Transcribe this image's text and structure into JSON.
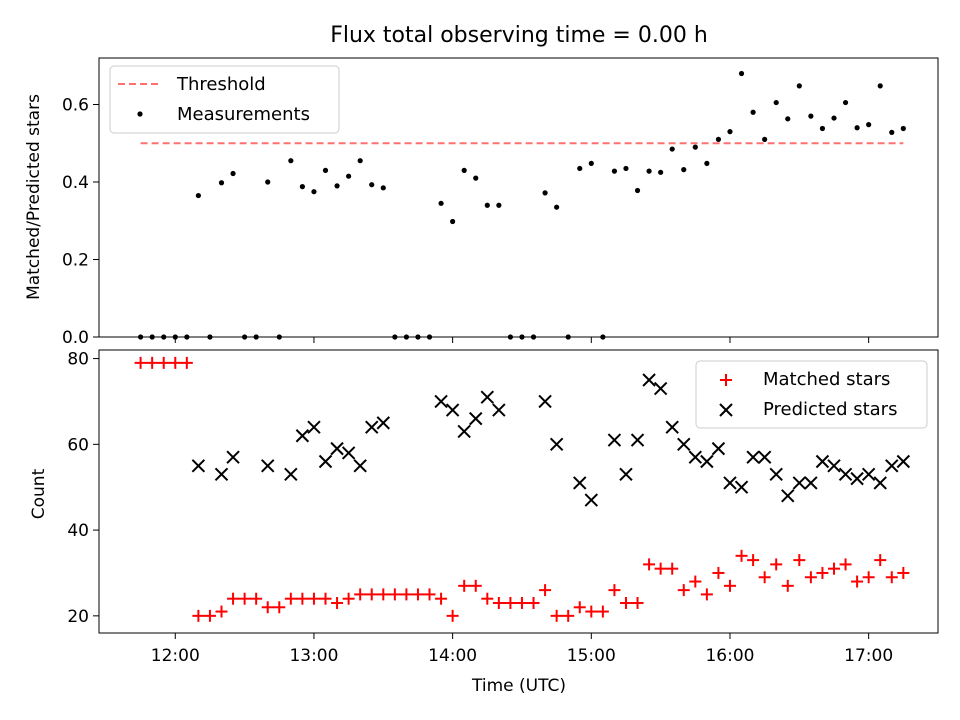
{
  "chart_data": [
    {
      "type": "scatter",
      "title": "Flux total observing time = 0.00 h",
      "xlabel": "",
      "ylabel": "Matched/Predicted stars",
      "xlim": [
        "11:27",
        "17:30"
      ],
      "ylim": [
        0,
        0.72
      ],
      "yticks": [
        0.0,
        0.2,
        0.4,
        0.6
      ],
      "ytick_labels": [
        "0.0",
        "0.2",
        "0.4",
        "0.6"
      ],
      "grid": false,
      "legend_position": "top-left",
      "series": [
        {
          "name": "Threshold",
          "type": "line",
          "style": "dashed",
          "color": "#ff7070",
          "x": [
            "11:45",
            "17:15"
          ],
          "y": [
            0.5,
            0.5
          ]
        },
        {
          "name": "Measurements",
          "type": "scatter",
          "color": "#000000",
          "x": [
            "11:45",
            "11:50",
            "11:55",
            "12:00",
            "12:05",
            "12:10",
            "12:15",
            "12:20",
            "12:25",
            "12:30",
            "12:35",
            "12:40",
            "12:45",
            "12:50",
            "12:55",
            "13:00",
            "13:05",
            "13:10",
            "13:15",
            "13:20",
            "13:25",
            "13:30",
            "13:35",
            "13:40",
            "13:45",
            "13:50",
            "13:55",
            "14:00",
            "14:05",
            "14:10",
            "14:15",
            "14:20",
            "14:25",
            "14:30",
            "14:35",
            "14:40",
            "14:45",
            "14:50",
            "14:55",
            "15:00",
            "15:05",
            "15:10",
            "15:15",
            "15:20",
            "15:25",
            "15:30",
            "15:35",
            "15:40",
            "15:45",
            "15:50",
            "15:55",
            "16:00",
            "16:05",
            "16:10",
            "16:15",
            "16:20",
            "16:25",
            "16:30",
            "16:35",
            "16:40",
            "16:45",
            "16:50",
            "16:55",
            "17:00",
            "17:05",
            "17:10",
            "17:15"
          ],
          "y": [
            0.0,
            0.0,
            0.0,
            0.0,
            0.0,
            0.365,
            0.0,
            0.398,
            0.422,
            0.0,
            0.0,
            0.4,
            0.0,
            0.455,
            0.388,
            0.375,
            0.43,
            0.39,
            0.415,
            0.455,
            0.393,
            0.385,
            0.0,
            0.0,
            0.0,
            0.0,
            0.345,
            0.298,
            0.43,
            0.41,
            0.34,
            0.34,
            0.0,
            0.0,
            0.0,
            0.372,
            0.335,
            0.0,
            0.435,
            0.448,
            0.0,
            0.428,
            0.435,
            0.378,
            0.428,
            0.425,
            0.485,
            0.432,
            0.49,
            0.448,
            0.51,
            0.53,
            0.68,
            0.58,
            0.51,
            0.605,
            0.563,
            0.648,
            0.57,
            0.538,
            0.565,
            0.605,
            0.54,
            0.548,
            0.648,
            0.528,
            0.538
          ]
        }
      ]
    },
    {
      "type": "scatter",
      "title": "",
      "xlabel": "Time (UTC)",
      "ylabel": "Count",
      "xlim": [
        "11:27",
        "17:30"
      ],
      "ylim": [
        16,
        82
      ],
      "yticks": [
        20,
        40,
        60,
        80
      ],
      "ytick_labels": [
        "20",
        "40",
        "60",
        "80"
      ],
      "xticks": [
        "12:00",
        "13:00",
        "14:00",
        "15:00",
        "16:00",
        "17:00"
      ],
      "grid": false,
      "legend_position": "top-right",
      "series": [
        {
          "name": "Matched stars",
          "marker": "+",
          "color": "#ff0000",
          "x": [
            "11:45",
            "11:50",
            "11:55",
            "12:00",
            "12:05",
            "12:10",
            "12:15",
            "12:20",
            "12:25",
            "12:30",
            "12:35",
            "12:40",
            "12:45",
            "12:50",
            "12:55",
            "13:00",
            "13:05",
            "13:10",
            "13:15",
            "13:20",
            "13:25",
            "13:30",
            "13:35",
            "13:40",
            "13:45",
            "13:50",
            "13:55",
            "14:00",
            "14:05",
            "14:10",
            "14:15",
            "14:20",
            "14:25",
            "14:30",
            "14:35",
            "14:40",
            "14:45",
            "14:50",
            "14:55",
            "15:00",
            "15:05",
            "15:10",
            "15:15",
            "15:20",
            "15:25",
            "15:30",
            "15:35",
            "15:40",
            "15:45",
            "15:50",
            "15:55",
            "16:00",
            "16:05",
            "16:10",
            "16:15",
            "16:20",
            "16:25",
            "16:30",
            "16:35",
            "16:40",
            "16:45",
            "16:50",
            "16:55",
            "17:00",
            "17:05",
            "17:10",
            "17:15"
          ],
          "y": [
            79,
            79,
            79,
            79,
            79,
            20,
            20,
            21,
            24,
            24,
            24,
            22,
            22,
            24,
            24,
            24,
            24,
            23,
            24,
            25,
            25,
            25,
            25,
            25,
            25,
            25,
            24,
            20,
            27,
            27,
            24,
            23,
            23,
            23,
            23,
            26,
            20,
            20,
            22,
            21,
            21,
            26,
            23,
            23,
            32,
            31,
            31,
            26,
            28,
            25,
            30,
            27,
            34,
            33,
            29,
            32,
            27,
            33,
            29,
            30,
            31,
            32,
            28,
            29,
            33,
            29,
            30
          ]
        },
        {
          "name": "Predicted stars",
          "marker": "x",
          "color": "#000000",
          "x": [
            "12:10",
            "12:20",
            "12:25",
            "12:40",
            "12:50",
            "12:55",
            "13:00",
            "13:05",
            "13:10",
            "13:15",
            "13:20",
            "13:25",
            "13:30",
            "13:55",
            "14:00",
            "14:05",
            "14:10",
            "14:15",
            "14:20",
            "14:40",
            "14:45",
            "14:55",
            "15:00",
            "15:10",
            "15:15",
            "15:20",
            "15:25",
            "15:30",
            "15:35",
            "15:40",
            "15:45",
            "15:50",
            "15:55",
            "16:00",
            "16:05",
            "16:10",
            "16:15",
            "16:20",
            "16:25",
            "16:30",
            "16:35",
            "16:40",
            "16:45",
            "16:50",
            "16:55",
            "17:00",
            "17:05",
            "17:10",
            "17:15"
          ],
          "y": [
            55,
            53,
            57,
            55,
            53,
            62,
            64,
            56,
            59,
            58,
            55,
            64,
            65,
            70,
            68,
            63,
            66,
            71,
            68,
            70,
            60,
            51,
            47,
            61,
            53,
            61,
            75,
            73,
            64,
            60,
            57,
            56,
            59,
            51,
            50,
            57,
            57,
            53,
            48,
            51,
            51,
            56,
            55,
            53,
            52,
            53,
            51,
            55,
            56
          ]
        }
      ]
    }
  ]
}
